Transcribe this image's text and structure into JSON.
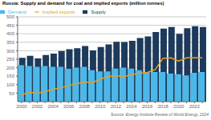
{
  "chart_data": {
    "type": "bar",
    "title": "Russia: Supply and demand for coal and implied exports (million tonnes)",
    "categories": [
      "2000",
      null,
      "2002",
      null,
      "2004",
      null,
      "2006",
      null,
      "2008",
      null,
      "2010",
      null,
      "2012",
      null,
      "2014",
      null,
      "2016",
      null,
      "2018",
      null,
      "2020",
      null,
      "2022",
      null
    ],
    "series": [
      {
        "name": "Supply",
        "type": "bar",
        "color": "#1d3a5c",
        "values": [
          258,
          270,
          255,
          275,
          283,
          298,
          309,
          315,
          328,
          302,
          322,
          337,
          353,
          352,
          358,
          375,
          385,
          410,
          430,
          440,
          400,
          433,
          445,
          440
        ]
      },
      {
        "name": "Demand",
        "type": "bar",
        "color": "#4ab8e8",
        "values": [
          215,
          210,
          205,
          210,
          205,
          205,
          193,
          200,
          205,
          185,
          178,
          178,
          195,
          200,
          195,
          185,
          175,
          175,
          175,
          165,
          162,
          155,
          170,
          175
        ]
      },
      {
        "name": "Implied exports",
        "type": "line",
        "color": "#e8a020",
        "values": [
          40,
          55,
          48,
          60,
          72,
          82,
          95,
          105,
          115,
          112,
          132,
          148,
          152,
          148,
          158,
          168,
          172,
          188,
          255,
          258,
          238,
          258,
          258,
          258
        ]
      }
    ],
    "ylim": [
      0,
      500
    ],
    "yticks": [
      50,
      100,
      150,
      200,
      250,
      300,
      350,
      400,
      450,
      500
    ],
    "grid": true,
    "legend": "upper left",
    "annotations": [
      "Source: Energy Institute Review of World Energy, 2024"
    ]
  }
}
